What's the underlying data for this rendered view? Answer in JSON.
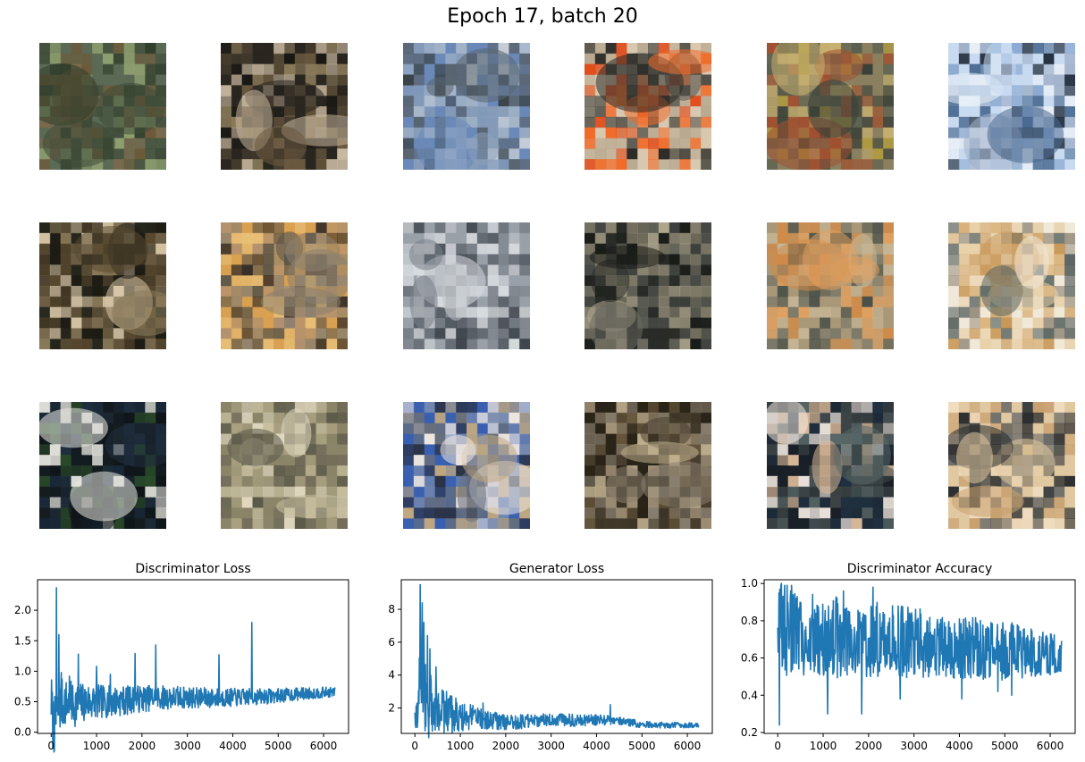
{
  "figure": {
    "title": "Epoch 17, batch 20"
  },
  "sample_grid": {
    "rows": 3,
    "cols": 6,
    "tiles": [
      {
        "name": "sample-1",
        "palette": [
          "#5b6a55",
          "#3e4a36",
          "#7a6a4e",
          "#2f3d2a",
          "#8fa070",
          "#6e5a3a"
        ]
      },
      {
        "name": "sample-2",
        "palette": [
          "#2a2620",
          "#4a4030",
          "#6b5a40",
          "#1a1814",
          "#8a7a5a",
          "#c8b8a0"
        ]
      },
      {
        "name": "sample-3",
        "palette": [
          "#6a88b8",
          "#a8b8c8",
          "#3a4448",
          "#8ca0b8",
          "#c8d0d8",
          "#5a6470"
        ]
      },
      {
        "name": "sample-4",
        "palette": [
          "#d8c8b0",
          "#e04a18",
          "#2a2a26",
          "#b8a890",
          "#f06a28",
          "#5a5850"
        ]
      },
      {
        "name": "sample-5",
        "palette": [
          "#8a8060",
          "#5a6050",
          "#b09a40",
          "#3a4038",
          "#a05030",
          "#c8b070"
        ]
      },
      {
        "name": "sample-6",
        "palette": [
          "#c8daf0",
          "#8aa8d0",
          "#1e2a38",
          "#a0b0c8",
          "#e8eef6",
          "#4a6a90"
        ]
      },
      {
        "name": "sample-7",
        "palette": [
          "#1e1c14",
          "#5a4a30",
          "#8a7a5a",
          "#2a2a20",
          "#d8c8a8",
          "#6a5a40"
        ]
      },
      {
        "name": "sample-8",
        "palette": [
          "#d8a050",
          "#3a3028",
          "#8a8070",
          "#e8c078",
          "#5a5448",
          "#b09070"
        ]
      },
      {
        "name": "sample-9",
        "palette": [
          "#9aa0a8",
          "#c0c4c8",
          "#3a4048",
          "#7a8088",
          "#d8dce0",
          "#5a6068"
        ]
      },
      {
        "name": "sample-10",
        "palette": [
          "#2a2c28",
          "#8a8470",
          "#4a4c48",
          "#b0a890",
          "#1a1c18",
          "#6a6a60"
        ]
      },
      {
        "name": "sample-11",
        "palette": [
          "#a89878",
          "#d08a48",
          "#4a5048",
          "#c8b898",
          "#7a7868",
          "#e0a060"
        ]
      },
      {
        "name": "sample-12",
        "palette": [
          "#f0e8d8",
          "#d8b078",
          "#5a6460",
          "#e8d0a8",
          "#9a9080",
          "#c89858"
        ]
      },
      {
        "name": "sample-13",
        "palette": [
          "#141c20",
          "#203040",
          "#2a4a2a",
          "#0e1418",
          "#e8e8e0",
          "#1a2838"
        ]
      },
      {
        "name": "sample-14",
        "palette": [
          "#8a8468",
          "#a8a080",
          "#5a5848",
          "#c8c0a0",
          "#706a58",
          "#e0d8c0"
        ]
      },
      {
        "name": "sample-15",
        "palette": [
          "#3a60b0",
          "#c0a880",
          "#6a7078",
          "#f0e8e0",
          "#2a3040",
          "#8090b0"
        ]
      },
      {
        "name": "sample-16",
        "palette": [
          "#2a2418",
          "#6a5a40",
          "#8a8070",
          "#4a4030",
          "#c0b090",
          "#a09078"
        ]
      },
      {
        "name": "sample-17",
        "palette": [
          "#1a2028",
          "#404848",
          "#d8b898",
          "#203040",
          "#f0e8e0",
          "#5a6868"
        ]
      },
      {
        "name": "sample-18",
        "palette": [
          "#e0c8a0",
          "#3a3e40",
          "#c8a070",
          "#6a6a68",
          "#f0dcc0",
          "#2a2c2e"
        ]
      }
    ]
  },
  "chart_data": [
    {
      "type": "line",
      "title": "Discriminator Loss",
      "xlim": [
        -300,
        6550
      ],
      "ylim": [
        -0.02,
        2.5
      ],
      "xticks": [
        0,
        1000,
        2000,
        3000,
        4000,
        5000,
        6000
      ],
      "yticks": [
        0.0,
        0.5,
        1.0,
        1.5,
        2.0
      ],
      "ytick_labels": [
        "0.0",
        "0.5",
        "1.0",
        "1.5",
        "2.0"
      ],
      "color": "#1f77b4",
      "anchors": [
        [
          0,
          0.55
        ],
        [
          30,
          0.2
        ],
        [
          60,
          0.1
        ],
        [
          100,
          0.15
        ],
        [
          150,
          0.35
        ],
        [
          200,
          0.45
        ],
        [
          300,
          0.48
        ],
        [
          500,
          0.45
        ],
        [
          800,
          0.5
        ],
        [
          1200,
          0.5
        ],
        [
          1600,
          0.52
        ],
        [
          2000,
          0.55
        ],
        [
          2500,
          0.57
        ],
        [
          3000,
          0.57
        ],
        [
          3500,
          0.56
        ],
        [
          4000,
          0.57
        ],
        [
          4500,
          0.58
        ],
        [
          5000,
          0.6
        ],
        [
          5500,
          0.63
        ],
        [
          6000,
          0.65
        ],
        [
          6250,
          0.66
        ]
      ],
      "band": [
        [
          0,
          0.5
        ],
        [
          300,
          0.4
        ],
        [
          1000,
          0.28
        ],
        [
          2000,
          0.22
        ],
        [
          3000,
          0.18
        ],
        [
          4000,
          0.15
        ],
        [
          5000,
          0.12
        ],
        [
          6250,
          0.08
        ]
      ],
      "spikes": [
        [
          120,
          2.37
        ],
        [
          170,
          1.6
        ],
        [
          220,
          0.98
        ],
        [
          400,
          0.92
        ],
        [
          600,
          1.28
        ],
        [
          1000,
          1.08
        ],
        [
          1300,
          0.95
        ],
        [
          1850,
          1.29
        ],
        [
          2300,
          1.43
        ],
        [
          3700,
          1.27
        ],
        [
          4420,
          1.8
        ]
      ],
      "n_points": 700
    },
    {
      "type": "line",
      "title": "Generator Loss",
      "xlim": [
        -300,
        6550
      ],
      "ylim": [
        0.45,
        9.8
      ],
      "xticks": [
        0,
        1000,
        2000,
        3000,
        4000,
        5000,
        6000
      ],
      "yticks": [
        2,
        4,
        6,
        8
      ],
      "ytick_labels": [
        "2",
        "4",
        "6",
        "8"
      ],
      "color": "#1f77b4",
      "anchors": [
        [
          0,
          0.8
        ],
        [
          60,
          1.2
        ],
        [
          100,
          4.0
        ],
        [
          150,
          3.0
        ],
        [
          200,
          2.8
        ],
        [
          300,
          2.2
        ],
        [
          400,
          2.0
        ],
        [
          600,
          1.8
        ],
        [
          800,
          1.6
        ],
        [
          1000,
          1.5
        ],
        [
          1500,
          1.4
        ],
        [
          2000,
          1.1
        ],
        [
          2500,
          1.2
        ],
        [
          3000,
          1.25
        ],
        [
          3500,
          1.25
        ],
        [
          4000,
          1.25
        ],
        [
          4500,
          1.2
        ],
        [
          5000,
          1.0
        ],
        [
          5500,
          0.95
        ],
        [
          6000,
          0.95
        ],
        [
          6250,
          0.95
        ]
      ],
      "band": [
        [
          0,
          1.2
        ],
        [
          200,
          2.5
        ],
        [
          500,
          1.5
        ],
        [
          1000,
          0.9
        ],
        [
          2000,
          0.45
        ],
        [
          3000,
          0.4
        ],
        [
          4000,
          0.35
        ],
        [
          5000,
          0.2
        ],
        [
          6250,
          0.15
        ]
      ],
      "spikes": [
        [
          120,
          9.5
        ],
        [
          160,
          8.4
        ],
        [
          200,
          7.2
        ],
        [
          280,
          6.4
        ],
        [
          330,
          5.6
        ],
        [
          460,
          4.5
        ],
        [
          700,
          3.0
        ],
        [
          900,
          2.6
        ],
        [
          1500,
          2.3
        ],
        [
          4300,
          2.2
        ]
      ],
      "n_points": 700
    },
    {
      "type": "line",
      "title": "Discriminator Accuracy",
      "xlim": [
        -300,
        6550
      ],
      "ylim": [
        0.195,
        1.02
      ],
      "xticks": [
        0,
        1000,
        2000,
        3000,
        4000,
        5000,
        6000
      ],
      "yticks": [
        0.2,
        0.4,
        0.6,
        0.8,
        1.0
      ],
      "ytick_labels": [
        "0.2",
        "0.4",
        "0.6",
        "0.8",
        "1.0"
      ],
      "color": "#1f77b4",
      "anchors": [
        [
          0,
          0.75
        ],
        [
          300,
          0.75
        ],
        [
          1000,
          0.72
        ],
        [
          2000,
          0.7
        ],
        [
          3000,
          0.68
        ],
        [
          4000,
          0.66
        ],
        [
          5000,
          0.64
        ],
        [
          6000,
          0.62
        ],
        [
          6250,
          0.62
        ]
      ],
      "band": [
        [
          0,
          0.25
        ],
        [
          1000,
          0.23
        ],
        [
          2000,
          0.21
        ],
        [
          3000,
          0.19
        ],
        [
          4000,
          0.17
        ],
        [
          5000,
          0.16
        ],
        [
          6250,
          0.1
        ]
      ],
      "spikes": [
        [
          40,
          0.24
        ],
        [
          80,
          1.0
        ],
        [
          150,
          0.99
        ],
        [
          300,
          0.99
        ],
        [
          1100,
          0.3
        ],
        [
          1850,
          0.3
        ],
        [
          1450,
          0.96
        ],
        [
          2100,
          0.98
        ],
        [
          2700,
          0.38
        ],
        [
          4050,
          0.38
        ],
        [
          4850,
          0.42
        ],
        [
          5150,
          0.4
        ]
      ],
      "n_points": 700
    }
  ]
}
